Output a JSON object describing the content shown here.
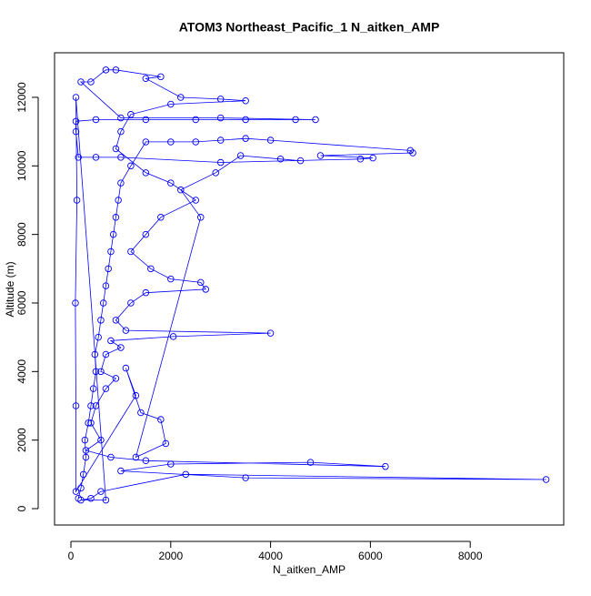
{
  "chart_data": {
    "type": "line",
    "title": "ATOM3 Northeast_Pacific_1 N_aitken_AMP",
    "x_label": "N_aitken_AMP",
    "y_label": "Altitude (m)",
    "color": "#0000ff",
    "xlim": [
      -328,
      9873
    ],
    "ylim": [
      -478,
      13300
    ],
    "xticks": [
      0,
      2000,
      4000,
      6000,
      8000
    ],
    "yticks": [
      0,
      2000,
      4000,
      6000,
      8000,
      10000,
      12000
    ],
    "x": [
      150,
      200,
      250,
      300,
      280,
      350,
      400,
      450,
      500,
      480,
      550,
      600,
      650,
      700,
      750,
      800,
      850,
      900,
      950,
      1000,
      1200,
      1500,
      2000,
      2500,
      3000,
      3500,
      4000,
      6800,
      6850,
      5000,
      6050,
      5800,
      3000,
      1000,
      500,
      150,
      100,
      100,
      500,
      1500,
      2500,
      3500,
      4500,
      4900,
      3000,
      1000,
      200,
      400,
      700,
      900,
      1800,
      1500,
      2200,
      3000,
      3500,
      2000,
      1200,
      1000,
      900,
      1500,
      2000,
      2500,
      1800,
      1500,
      1200,
      1600,
      2000,
      2600,
      2700,
      1500,
      1200,
      900,
      1100,
      4000,
      2050,
      800,
      1000,
      700,
      600,
      900,
      700,
      500,
      400,
      600,
      300,
      800,
      1500,
      6300,
      4800,
      2000,
      1000,
      3500,
      9520,
      2300,
      600,
      400,
      200,
      700,
      100,
      120,
      90,
      100,
      100,
      1300,
      1100,
      1400,
      1800,
      1900,
      1300,
      2600,
      2200,
      2900,
      3400,
      4200,
      4600
    ],
    "y": [
      300,
      600,
      1000,
      1500,
      2000,
      2500,
      3000,
      3500,
      4000,
      4500,
      5000,
      5500,
      6000,
      6500,
      7000,
      7500,
      8000,
      8500,
      9000,
      9500,
      10000,
      10700,
      10700,
      10700,
      10750,
      10800,
      10750,
      10450,
      10380,
      10300,
      10230,
      10200,
      10100,
      10250,
      10250,
      10250,
      11000,
      11300,
      11350,
      11350,
      11350,
      11350,
      11350,
      11350,
      11400,
      11400,
      12450,
      12450,
      12800,
      12800,
      12600,
      12550,
      12000,
      11950,
      11900,
      11800,
      11500,
      11000,
      10500,
      9800,
      9500,
      9000,
      8500,
      8000,
      7500,
      7000,
      6700,
      6600,
      6400,
      6300,
      6000,
      5500,
      5200,
      5120,
      5020,
      4900,
      4700,
      4500,
      4000,
      3800,
      3500,
      3000,
      2500,
      2000,
      1700,
      1500,
      1400,
      1230,
      1350,
      1300,
      1100,
      900,
      850,
      1000,
      500,
      300,
      250,
      250,
      12000,
      9000,
      6000,
      3000,
      500,
      3300,
      4100,
      2800,
      2600,
      1900,
      1500,
      8500,
      9300,
      9800,
      10300,
      10200,
      10150
    ]
  }
}
